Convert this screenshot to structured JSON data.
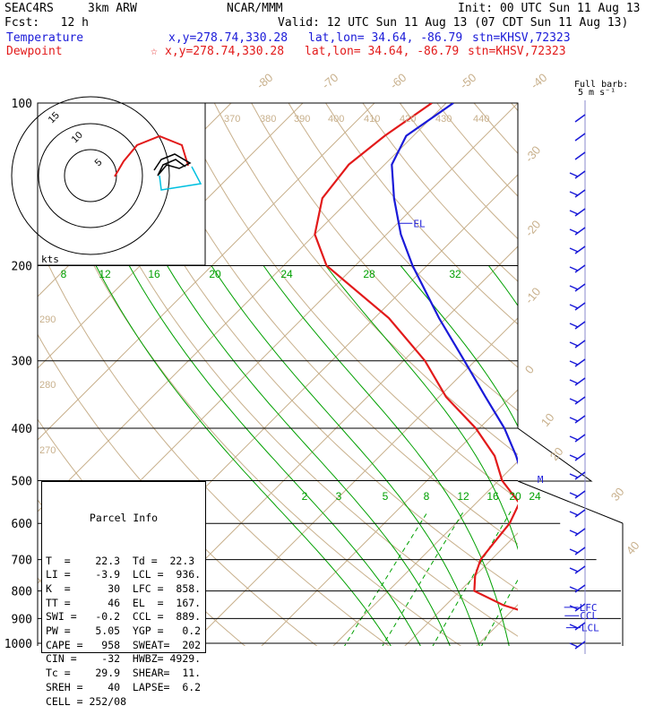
{
  "header": {
    "project": "SEAC4RS",
    "model": "3km ARW",
    "org": "NCAR/MMM",
    "init": "Init: 00 UTC Sun 11 Aug 13",
    "fcst": "Fcst:   12 h",
    "valid": "Valid: 12 UTC Sun 11 Aug 13 (07 CDT Sun 11 Aug 13)",
    "temp_line": {
      "label": "Temperature",
      "xy": "x,y=278.74,330.28",
      "latlon": "lat,lon= 34.64, -86.79",
      "stn": "stn=KHSV,72323"
    },
    "dew_line": {
      "label": "Dewpoint",
      "marker": "☆",
      "xy": "x,y=278.74,330.28",
      "latlon": "lat,lon= 34.64, -86.79",
      "stn": "stn=KHSV,72323"
    }
  },
  "colors": {
    "temperature": "#1a1ad8",
    "dewpoint": "#e21a1a",
    "isotherm": "#00a000",
    "dry_adiabat": "#c8b08c",
    "moist_adiabat": "#00a000",
    "hodo_cyan": "#00c0e0"
  },
  "chart_data": {
    "type": "line",
    "pressure_ticks": [
      100,
      200,
      300,
      400,
      500,
      600,
      700,
      800,
      900,
      1000
    ],
    "isotherm_labels_upper": [
      "8",
      "12",
      "16",
      "20",
      "24",
      "28",
      "32"
    ],
    "isotherm_labels_lower": [
      "2",
      "3",
      "5",
      "8",
      "12",
      "16",
      "20",
      "24"
    ],
    "dry_adiabat_labels_top": [
      "-80",
      "-70",
      "-60",
      "-50",
      "-40"
    ],
    "dry_adiabat_labels_right": [
      "-30",
      "-20",
      "-10",
      "0",
      "10",
      "20",
      "30",
      "40"
    ],
    "theta_labels_top": [
      "370",
      "380",
      "390",
      "400",
      "410",
      "420",
      "430",
      "440"
    ],
    "theta_labels_left": [
      "290",
      "280",
      "270"
    ],
    "series": [
      {
        "name": "Temperature",
        "pressure": [
          1000,
          950,
          925,
          900,
          875,
          850,
          800,
          750,
          700,
          650,
          600,
          550,
          500,
          450,
          400,
          350,
          300,
          250,
          200,
          175,
          150,
          130,
          115,
          100
        ],
        "temp_c": [
          22.3,
          20.5,
          19.5,
          18.5,
          17.5,
          16.5,
          14.5,
          11.5,
          8.5,
          5.0,
          1.5,
          -2.5,
          -6.5,
          -11.0,
          -16.5,
          -23.5,
          -31.5,
          -41.0,
          -52.0,
          -58.0,
          -64.0,
          -69.0,
          -71.0,
          -69.0
        ]
      },
      {
        "name": "Dewpoint",
        "pressure": [
          1000,
          950,
          925,
          900,
          875,
          850,
          800,
          750,
          700,
          650,
          600,
          550,
          500,
          450,
          400,
          350,
          300,
          250,
          200,
          175,
          150,
          130,
          115,
          100
        ],
        "temp_c": [
          22.3,
          20.0,
          18.8,
          16.0,
          12.0,
          8.0,
          2.0,
          0.0,
          -1.5,
          -2.0,
          -2.5,
          -4.0,
          -9.5,
          -14.0,
          -20.5,
          -29.0,
          -37.0,
          -48.0,
          -64.0,
          -70.0,
          -74.0,
          -75.0,
          -74.0,
          -72.0
        ]
      }
    ],
    "level_marks": [
      {
        "label": "EL",
        "p": 167
      },
      {
        "label": "M",
        "p": 497
      },
      {
        "label": "LFC",
        "p": 858
      },
      {
        "label": "CCL",
        "p": 889
      },
      {
        "label": "LCL",
        "p": 936
      }
    ],
    "hodograph": {
      "ring_labels": [
        "5",
        "10",
        "15"
      ],
      "units": "kts"
    },
    "wind_barb_title": "Full barb:",
    "wind_barb_sub": "5 m s⁻¹"
  },
  "parcel": {
    "title": "Parcel Info",
    "rows": [
      "T  =    22.3  Td =  22.3",
      "LI =    -3.9  LCL =  936.",
      "K  =      30  LFC =  858.",
      "TT =      46  EL  =  167.",
      "SWI =   -0.2  CCL =  889.",
      "PW =    5.05  YGP =   0.2",
      "CAPE =   958  SWEAT=  202",
      "CIN =    -32  HWBZ= 4929.",
      "Tc =    29.9  SHEAR=  11.",
      "SREH =    40  LAPSE=  6.2",
      "CELL = 252/08"
    ]
  }
}
